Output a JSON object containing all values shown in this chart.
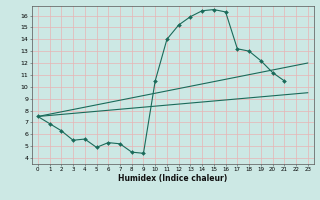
{
  "xlabel": "Humidex (Indice chaleur)",
  "bg_color": "#cce8e4",
  "line_color": "#1a6b5a",
  "grid_color": "#e8b4b4",
  "xlim": [
    -0.5,
    23.5
  ],
  "ylim": [
    3.5,
    16.8
  ],
  "xticks": [
    0,
    1,
    2,
    3,
    4,
    5,
    6,
    7,
    8,
    9,
    10,
    11,
    12,
    13,
    14,
    15,
    16,
    17,
    18,
    19,
    20,
    21,
    22,
    23
  ],
  "yticks": [
    4,
    5,
    6,
    7,
    8,
    9,
    10,
    11,
    12,
    13,
    14,
    15,
    16
  ],
  "curve1_x": [
    0,
    1,
    2,
    3,
    4,
    5,
    6,
    7,
    8,
    9,
    10,
    11,
    12,
    13,
    14,
    15,
    16,
    17,
    18,
    19,
    20,
    21
  ],
  "curve1_y": [
    7.5,
    6.9,
    6.3,
    5.5,
    5.6,
    4.9,
    5.3,
    5.2,
    4.5,
    4.4,
    10.5,
    14.0,
    15.2,
    15.9,
    16.4,
    16.5,
    16.3,
    13.2,
    13.0,
    12.2,
    11.2,
    10.5
  ],
  "curve2_x": [
    0,
    23
  ],
  "curve2_y": [
    7.5,
    12.0
  ],
  "curve3_x": [
    0,
    23
  ],
  "curve3_y": [
    7.5,
    9.5
  ]
}
